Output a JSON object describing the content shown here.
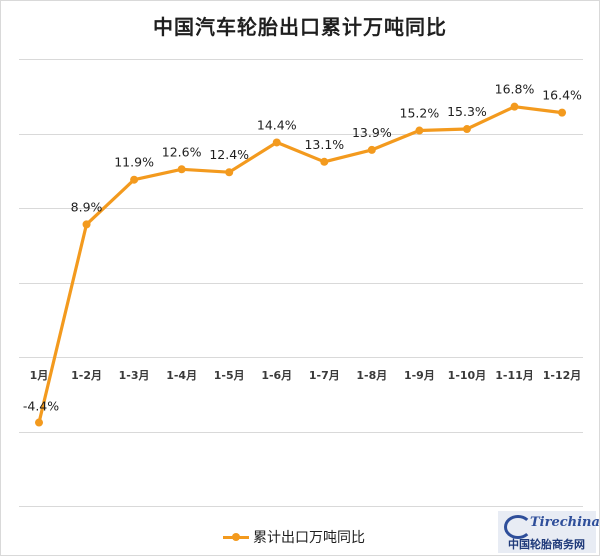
{
  "chart_data": {
    "type": "line",
    "title": "中国汽车轮胎出口累计万吨同比",
    "categories": [
      "1月",
      "1-2月",
      "1-3月",
      "1-4月",
      "1-5月",
      "1-6月",
      "1-7月",
      "1-8月",
      "1-9月",
      "1-10月",
      "1-11月",
      "1-12月"
    ],
    "series": [
      {
        "name": "累计出口万吨同比",
        "values": [
          -4.4,
          8.9,
          11.9,
          12.6,
          12.4,
          14.4,
          13.1,
          13.9,
          15.2,
          15.3,
          16.8,
          16.4
        ],
        "data_labels": [
          "-4.4%",
          "8.9%",
          "11.9%",
          "12.6%",
          "12.4%",
          "14.4%",
          "13.1%",
          "13.9%",
          "15.2%",
          "15.3%",
          "16.8%",
          "16.4%"
        ]
      }
    ],
    "ylim": [
      -10,
      20
    ],
    "grid": true,
    "y_tick_labels_shown": false,
    "legend_position": "bottom",
    "colors": {
      "series": "#f39a1e",
      "grid": "#d9d9d9"
    }
  },
  "watermark": {
    "text": "Tirechina.net",
    "caption": "中国轮胎商务网"
  }
}
